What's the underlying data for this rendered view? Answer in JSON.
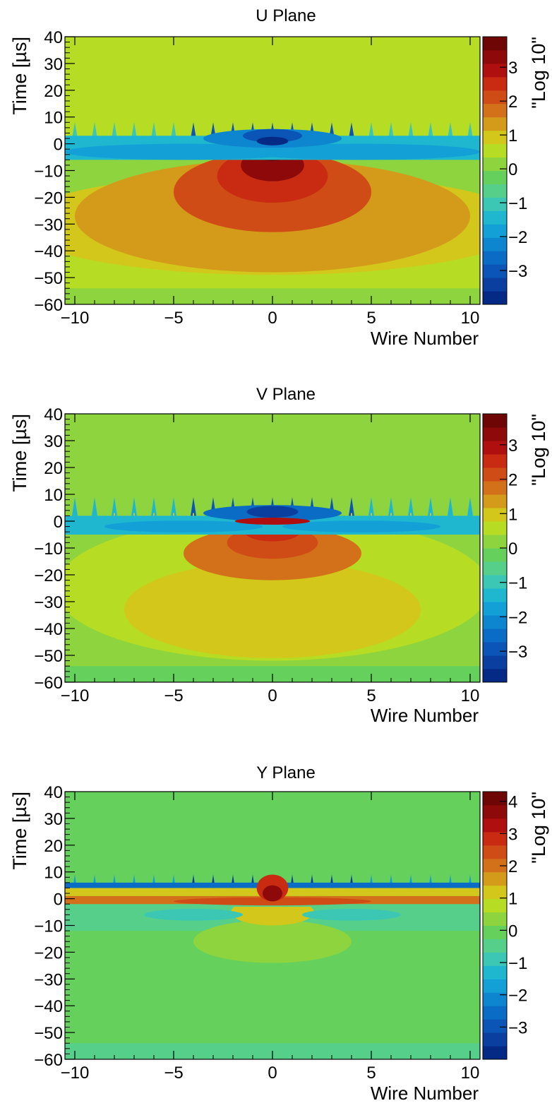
{
  "chart_data": [
    {
      "type": "heatmap",
      "title": "U Plane",
      "xlabel": "Wire Number",
      "ylabel": "Time [µs]",
      "zlabel": "\"Log 10\"",
      "xlim": [
        -10.5,
        10.5
      ],
      "ylim": [
        -60,
        40
      ],
      "zlim": [
        -4,
        3.9
      ],
      "xticks": [
        -10,
        -5,
        0,
        5,
        10
      ],
      "yticks": [
        40,
        30,
        20,
        10,
        0,
        -10,
        -20,
        -30,
        -40,
        -50,
        -60
      ],
      "zticks": [
        3,
        2,
        1,
        0,
        -1,
        -2,
        -3
      ],
      "xtick_labels": [
        "−10",
        "−5",
        "0",
        "5",
        "10"
      ],
      "ytick_labels": [
        "40",
        "30",
        "20",
        "10",
        "0",
        "−10",
        "−20",
        "−30",
        "−40",
        "−50",
        "−60"
      ],
      "ztick_labels": [
        "3",
        "2",
        "1",
        "0",
        "−1",
        "−2",
        "−3"
      ],
      "baseline": 0.5,
      "regions": [
        {
          "shape": "ellipse",
          "x": 0,
          "y": -12,
          "rx": 12.5,
          "ry": 16,
          "top": -3,
          "value": 0.3
        },
        {
          "shape": "ellipse",
          "x": 0,
          "y": -30,
          "rx": 13,
          "ry": 19,
          "top": -5,
          "value": 1.0
        },
        {
          "shape": "ellipse",
          "x": 0,
          "y": -27,
          "rx": 10,
          "ry": 21,
          "top": -5,
          "value": 1.3
        },
        {
          "shape": "ellipse",
          "x": 0,
          "y": -18,
          "rx": 5,
          "ry": 15,
          "top": -5,
          "value": 2.0
        },
        {
          "shape": "ellipse",
          "x": 0,
          "y": -12,
          "rx": 2.8,
          "ry": 10,
          "top": -3,
          "value": 2.6
        },
        {
          "shape": "ellipse",
          "x": 0,
          "y": -8,
          "rx": 1.6,
          "ry": 6,
          "top": -2,
          "value": 3.2
        },
        {
          "shape": "ellipse",
          "x": 0,
          "y": -4,
          "rx": 0.7,
          "ry": 2.5,
          "top": -2,
          "value": 3.8
        },
        {
          "shape": "band",
          "y0": -6,
          "y1": 3,
          "value": -1.4
        },
        {
          "shape": "ellipse",
          "x": -4.5,
          "y": -3,
          "rx": 6,
          "ry": 3,
          "value": -1.9
        },
        {
          "shape": "ellipse",
          "x": 4.5,
          "y": -3,
          "rx": 6,
          "ry": 3,
          "value": -1.9
        },
        {
          "shape": "ellipse",
          "x": 0,
          "y": 2,
          "rx": 3.5,
          "ry": 3.5,
          "value": -2.4
        },
        {
          "shape": "ellipse",
          "x": 0,
          "y": 3,
          "rx": 1.5,
          "ry": 2.5,
          "value": -3.2
        },
        {
          "shape": "ellipse",
          "x": 0,
          "y": 1,
          "rx": 0.8,
          "ry": 1.6,
          "value": -3.7
        }
      ],
      "spikes": {
        "top": 8,
        "low_value": -1.0,
        "high_value": -3.0
      }
    },
    {
      "type": "heatmap",
      "title": "V Plane",
      "xlabel": "Wire Number",
      "ylabel": "Time [µs]",
      "zlabel": "\"Log 10\"",
      "xlim": [
        -10.5,
        10.5
      ],
      "ylim": [
        -60,
        40
      ],
      "zlim": [
        -3.9,
        3.9
      ],
      "xticks": [
        -10,
        -5,
        0,
        5,
        10
      ],
      "yticks": [
        40,
        30,
        20,
        10,
        0,
        -10,
        -20,
        -30,
        -40,
        -50,
        -60
      ],
      "zticks": [
        3,
        2,
        1,
        0,
        -1,
        -2,
        -3
      ],
      "xtick_labels": [
        "−10",
        "−5",
        "0",
        "5",
        "10"
      ],
      "ytick_labels": [
        "40",
        "30",
        "20",
        "10",
        "0",
        "−10",
        "−20",
        "−30",
        "−40",
        "−50",
        "−60"
      ],
      "ztick_labels": [
        "3",
        "2",
        "1",
        "0",
        "−1",
        "−2",
        "−3"
      ],
      "baseline": 0.2,
      "regions": [
        {
          "shape": "ellipse",
          "x": 0,
          "y": -25,
          "rx": 11,
          "ry": 27,
          "top": -2,
          "value": 0.4
        },
        {
          "shape": "ellipse",
          "x": 0,
          "y": -33,
          "rx": 7.5,
          "ry": 18,
          "top": -5,
          "value": 1.0
        },
        {
          "shape": "ellipse",
          "x": 0,
          "y": -12,
          "rx": 4.5,
          "ry": 10,
          "top": -3,
          "value": 1.6
        },
        {
          "shape": "ellipse",
          "x": 0,
          "y": -8,
          "rx": 2.3,
          "ry": 6,
          "top": -3,
          "value": 2.1
        },
        {
          "shape": "ellipse",
          "x": 0,
          "y": -4,
          "rx": 1.4,
          "ry": 3.5,
          "top": -1,
          "value": 2.7
        },
        {
          "shape": "band",
          "y0": -5,
          "y1": 2,
          "value": -1.4
        },
        {
          "shape": "ellipse",
          "x": -4.5,
          "y": -2,
          "rx": 4,
          "ry": 2.2,
          "value": -1.9
        },
        {
          "shape": "ellipse",
          "x": 4.5,
          "y": -2,
          "rx": 4,
          "ry": 2.2,
          "value": -1.9
        },
        {
          "shape": "ellipse",
          "x": 0,
          "y": 3,
          "rx": 3.5,
          "ry": 3,
          "value": -2.4
        },
        {
          "shape": "ellipse",
          "x": 0,
          "y": 0,
          "rx": 1.9,
          "ry": 1.3,
          "value": 3.0
        },
        {
          "shape": "ellipse",
          "x": 0,
          "y": 3.5,
          "rx": 1.3,
          "ry": 2.2,
          "value": -3.2
        }
      ],
      "spikes": {
        "top": 9,
        "low_value": -1.2,
        "high_value": -3.0,
        "tips_value": 1.0
      }
    },
    {
      "type": "heatmap",
      "title": "Y Plane",
      "xlabel": "Wire Number",
      "ylabel": "Time [µs]",
      "zlabel": "\"Log 10\"",
      "xlim": [
        -10.5,
        10.5
      ],
      "ylim": [
        -60,
        40
      ],
      "zlim": [
        -4,
        4.3
      ],
      "xticks": [
        -10,
        -5,
        0,
        5,
        10
      ],
      "yticks": [
        40,
        30,
        20,
        10,
        0,
        -10,
        -20,
        -30,
        -40,
        -50,
        -60
      ],
      "zticks": [
        4,
        3,
        2,
        1,
        0,
        -1,
        -2,
        -3
      ],
      "xtick_labels": [
        "−10",
        "−5",
        "0",
        "5",
        "10"
      ],
      "ytick_labels": [
        "40",
        "30",
        "20",
        "10",
        "0",
        "−10",
        "−20",
        "−30",
        "−40",
        "−50",
        "−60"
      ],
      "ztick_labels": [
        "4",
        "3",
        "2",
        "1",
        "0",
        "−1",
        "−2",
        "−3"
      ],
      "baseline": 0.0,
      "regions": [
        {
          "shape": "band",
          "y0": -12,
          "y1": -2,
          "value": -0.3
        },
        {
          "shape": "ellipse",
          "x": 0,
          "y": -16,
          "rx": 4,
          "ry": 8,
          "top": -3,
          "value": 0.5
        },
        {
          "shape": "ellipse",
          "x": 0,
          "y": -5,
          "rx": 2.1,
          "ry": 5,
          "top": -3,
          "value": 1.0
        },
        {
          "shape": "ellipse",
          "x": -4,
          "y": -6,
          "rx": 2.5,
          "ry": 2.2,
          "value": -0.8
        },
        {
          "shape": "ellipse",
          "x": 4,
          "y": -6,
          "rx": 2.5,
          "ry": 2.2,
          "value": -0.8
        },
        {
          "shape": "band",
          "y0": -2,
          "y1": 1,
          "value": 2.0
        },
        {
          "shape": "band",
          "y0": 1,
          "y1": 4,
          "value": 1.1
        },
        {
          "shape": "ellipse",
          "x": 0,
          "y": -1,
          "rx": 5,
          "ry": 1.5,
          "value": 2.6
        },
        {
          "shape": "band",
          "y0": 4,
          "y1": 6,
          "value": -2.6
        },
        {
          "shape": "ellipse",
          "x": 0,
          "y": 4,
          "rx": 0.8,
          "ry": 5,
          "value": 2.8
        },
        {
          "shape": "ellipse",
          "x": 0,
          "y": 2,
          "rx": 0.5,
          "ry": 3,
          "value": 3.8
        }
      ],
      "spikes": {
        "top": 9,
        "low_value": -1.8,
        "high_value": -3.3,
        "tips_value": 1.0
      }
    }
  ]
}
